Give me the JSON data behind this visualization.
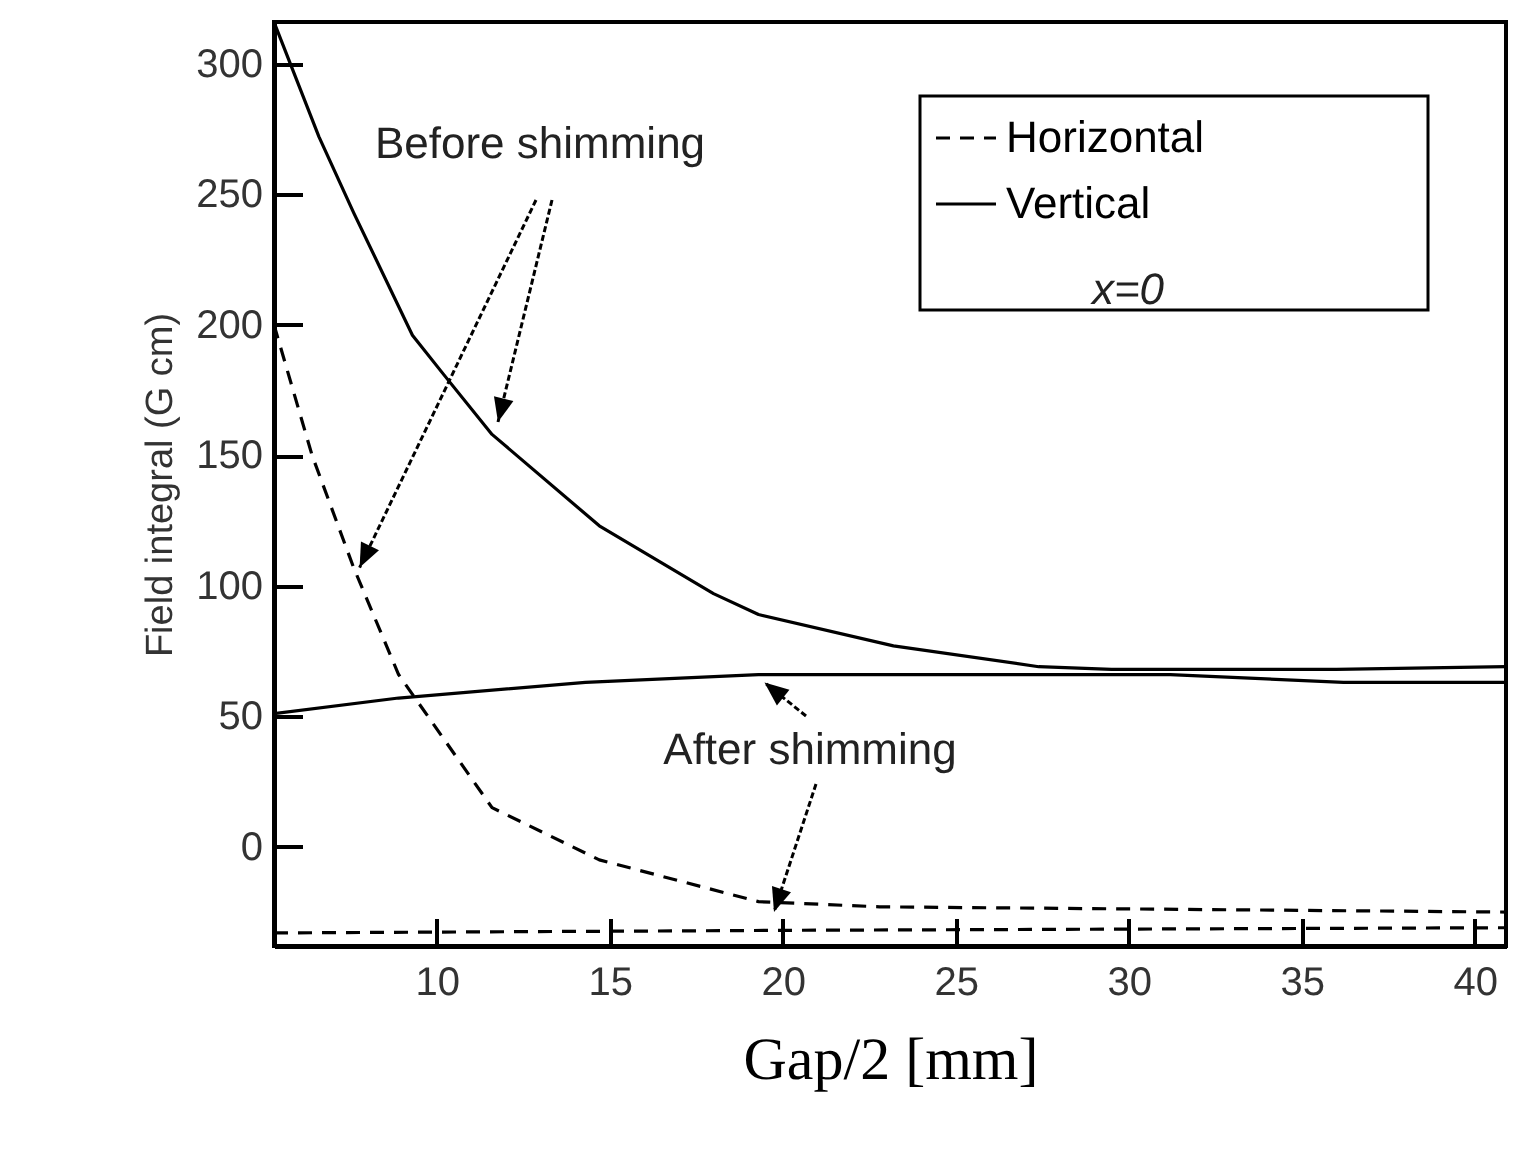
{
  "chart_data": {
    "type": "line",
    "xlabel": "Gap/2 [mm]",
    "ylabel": "Field integral (G cm)",
    "xlim": [
      5.3,
      40.9
    ],
    "ylim": [
      -38,
      316
    ],
    "xticks": [
      10,
      15,
      20,
      25,
      30,
      35,
      40
    ],
    "yticks": [
      0,
      50,
      100,
      150,
      200,
      250,
      300
    ],
    "grid": false,
    "legend": "top right",
    "marker": "none",
    "annotations": [
      {
        "text": "Before shimming",
        "x": 7.6,
        "y": 107
      },
      {
        "text": "After shimming",
        "x": 19.3,
        "y": 66
      },
      "x=0"
    ],
    "series": [
      {
        "name": "Horizontal",
        "color": "#000000",
        "line_style": "dashed",
        "x": [
          5.3,
          6.4,
          7.6,
          8.9,
          11.6,
          14.7,
          19.3,
          22.8,
          40.9
        ],
        "values": [
          200,
          150,
          107,
          66,
          15,
          -5,
          -21,
          -23,
          -25
        ]
      },
      {
        "name": "Vertical",
        "color": "#000000",
        "line_style": "solid",
        "x": [
          5.3,
          6.6,
          7.6,
          9.3,
          10.2,
          11.6,
          14.7,
          18,
          19.3,
          23.2,
          27.4,
          29.5,
          36,
          40.9
        ],
        "values": [
          316,
          272,
          243,
          196,
          181,
          158,
          123,
          97,
          89,
          77,
          69,
          68,
          68,
          69
        ]
      },
      {
        "color": "#000000",
        "line_style": "dashed",
        "x": [
          5.3,
          20,
          40.9
        ],
        "values": [
          -33,
          -32,
          -31
        ]
      },
      {
        "color": "#000000",
        "line_style": "solid",
        "x": [
          5.3,
          8.9,
          14.3,
          19.3,
          22.4,
          31.2,
          36.2,
          40.9
        ],
        "values": [
          51,
          57,
          63,
          66,
          66,
          66,
          63,
          63
        ]
      }
    ]
  }
}
